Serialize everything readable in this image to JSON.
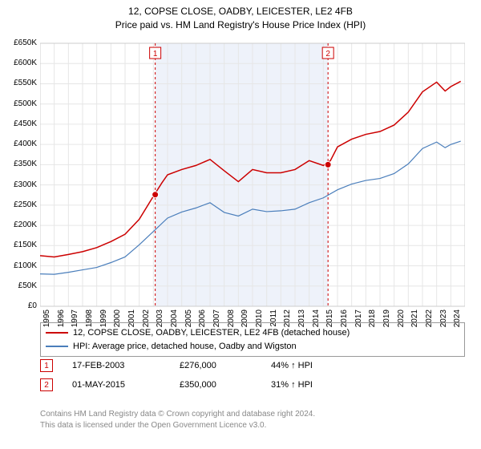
{
  "title": {
    "line1": "12, COPSE CLOSE, OADBY, LEICESTER, LE2 4FB",
    "line2": "Price paid vs. HM Land Registry's House Price Index (HPI)",
    "fontsize": 12,
    "color": "#000000"
  },
  "chart": {
    "type": "line",
    "background_color": "#ffffff",
    "plot_border_color": "#cccccc",
    "grid_color": "#e6e6e6",
    "x": {
      "min": 1995,
      "max": 2025,
      "ticks": [
        1995,
        1996,
        1997,
        1998,
        1999,
        2000,
        2001,
        2002,
        2003,
        2004,
        2005,
        2006,
        2007,
        2008,
        2009,
        2010,
        2011,
        2012,
        2013,
        2014,
        2015,
        2016,
        2017,
        2018,
        2019,
        2020,
        2021,
        2022,
        2023,
        2024
      ],
      "label_fontsize": 10,
      "label_rotation": -90
    },
    "y": {
      "min": 0,
      "max": 650000,
      "ticks": [
        0,
        50000,
        100000,
        150000,
        200000,
        250000,
        300000,
        350000,
        400000,
        450000,
        500000,
        550000,
        600000,
        650000
      ],
      "tick_labels": [
        "£0",
        "£50K",
        "£100K",
        "£150K",
        "£200K",
        "£250K",
        "£300K",
        "£350K",
        "£400K",
        "£450K",
        "£500K",
        "£550K",
        "£600K",
        "£650K"
      ],
      "label_fontsize": 10
    },
    "shaded_band": {
      "x_start": 2003.13,
      "x_end": 2015.33,
      "fill": "#eef2fa"
    },
    "series": [
      {
        "name": "property",
        "label": "12, COPSE CLOSE, OADBY, LEICESTER, LE2 4FB (detached house)",
        "color": "#cc0000",
        "line_width": 1.5,
        "data": [
          [
            1995,
            125000
          ],
          [
            1996,
            122000
          ],
          [
            1997,
            128000
          ],
          [
            1998,
            135000
          ],
          [
            1999,
            145000
          ],
          [
            2000,
            160000
          ],
          [
            2001,
            178000
          ],
          [
            2002,
            215000
          ],
          [
            2003,
            272000
          ],
          [
            2003.6,
            305000
          ],
          [
            2004,
            325000
          ],
          [
            2005,
            338000
          ],
          [
            2006,
            348000
          ],
          [
            2007,
            363000
          ],
          [
            2008,
            335000
          ],
          [
            2009,
            308000
          ],
          [
            2010,
            338000
          ],
          [
            2011,
            330000
          ],
          [
            2012,
            330000
          ],
          [
            2013,
            338000
          ],
          [
            2014,
            360000
          ],
          [
            2015,
            348000
          ],
          [
            2015.5,
            360000
          ],
          [
            2016,
            394000
          ],
          [
            2017,
            413000
          ],
          [
            2018,
            425000
          ],
          [
            2019,
            432000
          ],
          [
            2020,
            448000
          ],
          [
            2021,
            480000
          ],
          [
            2022,
            530000
          ],
          [
            2023,
            554000
          ],
          [
            2023.6,
            532000
          ],
          [
            2024,
            543000
          ],
          [
            2024.7,
            556000
          ]
        ]
      },
      {
        "name": "hpi",
        "label": "HPI: Average price, detached house, Oadby and Wigston",
        "color": "#4a7ebb",
        "line_width": 1.2,
        "data": [
          [
            1995,
            80000
          ],
          [
            1996,
            79000
          ],
          [
            1997,
            84000
          ],
          [
            1998,
            90000
          ],
          [
            1999,
            96000
          ],
          [
            2000,
            108000
          ],
          [
            2001,
            122000
          ],
          [
            2002,
            152000
          ],
          [
            2003,
            185000
          ],
          [
            2004,
            218000
          ],
          [
            2005,
            233000
          ],
          [
            2006,
            243000
          ],
          [
            2007,
            256000
          ],
          [
            2008,
            232000
          ],
          [
            2009,
            223000
          ],
          [
            2010,
            240000
          ],
          [
            2011,
            234000
          ],
          [
            2012,
            236000
          ],
          [
            2013,
            240000
          ],
          [
            2014,
            256000
          ],
          [
            2015,
            268000
          ],
          [
            2016,
            288000
          ],
          [
            2017,
            302000
          ],
          [
            2018,
            311000
          ],
          [
            2019,
            316000
          ],
          [
            2020,
            328000
          ],
          [
            2021,
            352000
          ],
          [
            2022,
            390000
          ],
          [
            2023,
            406000
          ],
          [
            2023.6,
            392000
          ],
          [
            2024,
            400000
          ],
          [
            2024.7,
            408000
          ]
        ]
      }
    ],
    "sale_markers": [
      {
        "n": "1",
        "x": 2003.13,
        "y": 276000,
        "marker_color": "#cc0000",
        "marker_size": 6,
        "flag_y": 640000
      },
      {
        "n": "2",
        "x": 2015.33,
        "y": 350000,
        "marker_color": "#cc0000",
        "marker_size": 6,
        "flag_y": 640000
      }
    ],
    "marker_vline_color": "#cc0000",
    "marker_vline_dash": "3,3"
  },
  "legend": {
    "border_color": "#999999",
    "fontsize": 11,
    "items": [
      {
        "color": "#cc0000",
        "text": "12, COPSE CLOSE, OADBY, LEICESTER, LE2 4FB (detached house)"
      },
      {
        "color": "#4a7ebb",
        "text": "HPI: Average price, detached house, Oadby and Wigston"
      }
    ]
  },
  "sales": [
    {
      "n": "1",
      "date": "17-FEB-2003",
      "price": "£276,000",
      "pct": "44% ↑ HPI"
    },
    {
      "n": "2",
      "date": "01-MAY-2015",
      "price": "£350,000",
      "pct": "31% ↑ HPI"
    }
  ],
  "footer": {
    "line1": "Contains HM Land Registry data © Crown copyright and database right 2024.",
    "line2": "This data is licensed under the Open Government Licence v3.0.",
    "color": "#888888",
    "fontsize": 10
  }
}
